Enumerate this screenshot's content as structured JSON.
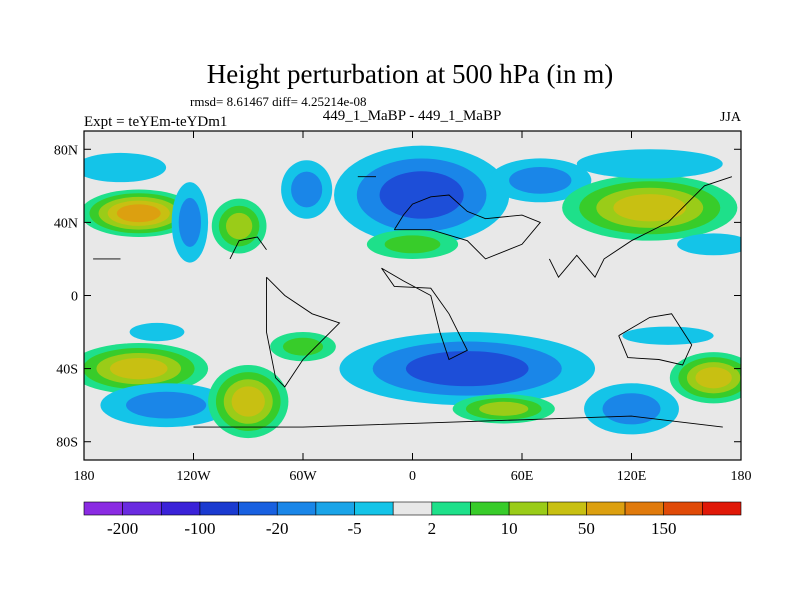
{
  "chart_data": {
    "type": "heatmap",
    "title": "Height perturbation at 500 hPa (in m)",
    "stats": "rmsd= 8.61467 diff= 4.25214e-08",
    "left_label": "Expt = teYEm-teYDm1",
    "center_label": "449_1_MaBP - 449_1_MaBP",
    "right_label": "JJA",
    "x_ticks": [
      {
        "lon": -180,
        "label": "180"
      },
      {
        "lon": -120,
        "label": "120W"
      },
      {
        "lon": -60,
        "label": "60W"
      },
      {
        "lon": 0,
        "label": "0"
      },
      {
        "lon": 60,
        "label": "60E"
      },
      {
        "lon": 120,
        "label": "120E"
      },
      {
        "lon": 180,
        "label": "180"
      }
    ],
    "y_ticks": [
      {
        "lat": 80,
        "label": "80N"
      },
      {
        "lat": 40,
        "label": "40N"
      },
      {
        "lat": 0,
        "label": "0"
      },
      {
        "lat": -40,
        "label": "40S"
      },
      {
        "lat": -80,
        "label": "80S"
      }
    ],
    "xlim": [
      -180,
      180
    ],
    "ylim": [
      -90,
      90
    ],
    "colorbar": {
      "colors": [
        "#8a2be2",
        "#6a2be0",
        "#3a22d8",
        "#1a3ad0",
        "#1860e0",
        "#1a86e8",
        "#1aa4e8",
        "#14c4e8",
        "#e8e8e8",
        "#1ee08a",
        "#38cc2a",
        "#9acc18",
        "#c8c012",
        "#dca010",
        "#e07a0c",
        "#e04a08",
        "#e01808"
      ],
      "labels": [
        {
          "index": 1,
          "label": "-200"
        },
        {
          "index": 3,
          "label": "-100"
        },
        {
          "index": 5,
          "label": "-20"
        },
        {
          "index": 7,
          "label": "-5"
        },
        {
          "index": 9,
          "label": "2"
        },
        {
          "index": 11,
          "label": "10"
        },
        {
          "index": 13,
          "label": "50"
        },
        {
          "index": 15,
          "label": "150"
        }
      ]
    },
    "level_colors": {
      "neg_strong": "#1d4ed8",
      "neg_mid": "#1a86e8",
      "neg_weak": "#14c4e8",
      "neutral": "#e8e8e8",
      "pos_weak": "#1ee08a",
      "pos_mid": "#38cc2a",
      "pos_high": "#9acc18",
      "pos_strong": "#c8c012",
      "pos_peak": "#dca010"
    },
    "fields": [
      {
        "lon": -150,
        "lat": 45,
        "rlon": 32,
        "rlat": 13,
        "levels": [
          "pos_weak",
          "pos_mid",
          "pos_high",
          "pos_strong",
          "pos_peak"
        ]
      },
      {
        "lon": -95,
        "lat": 38,
        "rlon": 15,
        "rlat": 15,
        "levels": [
          "pos_weak",
          "pos_mid",
          "pos_high"
        ]
      },
      {
        "lon": -122,
        "lat": 40,
        "rlon": 10,
        "rlat": 22,
        "levels": [
          "neg_weak",
          "neg_mid"
        ]
      },
      {
        "lon": -160,
        "lat": 70,
        "rlon": 25,
        "rlat": 8,
        "levels": [
          "neg_weak"
        ]
      },
      {
        "lon": -58,
        "lat": 58,
        "rlon": 14,
        "rlat": 16,
        "levels": [
          "neg_weak",
          "neg_mid"
        ]
      },
      {
        "lon": 5,
        "lat": 55,
        "rlon": 48,
        "rlat": 27,
        "levels": [
          "neg_weak",
          "neg_mid",
          "neg_strong"
        ]
      },
      {
        "lon": 70,
        "lat": 63,
        "rlon": 28,
        "rlat": 12,
        "levels": [
          "neg_weak",
          "neg_mid"
        ]
      },
      {
        "lon": 0,
        "lat": 28,
        "rlon": 25,
        "rlat": 8,
        "levels": [
          "pos_weak",
          "pos_mid"
        ]
      },
      {
        "lon": 130,
        "lat": 48,
        "rlon": 48,
        "rlat": 18,
        "levels": [
          "pos_weak",
          "pos_mid",
          "pos_high",
          "pos_strong"
        ]
      },
      {
        "lon": 130,
        "lat": 72,
        "rlon": 40,
        "rlat": 8,
        "levels": [
          "neg_weak"
        ]
      },
      {
        "lon": 165,
        "lat": 28,
        "rlon": 20,
        "rlat": 6,
        "levels": [
          "neg_weak"
        ]
      },
      {
        "lon": -150,
        "lat": -40,
        "rlon": 38,
        "rlat": 14,
        "levels": [
          "pos_weak",
          "pos_mid",
          "pos_high",
          "pos_strong"
        ]
      },
      {
        "lon": -135,
        "lat": -60,
        "rlon": 36,
        "rlat": 12,
        "levels": [
          "neg_weak",
          "neg_mid"
        ]
      },
      {
        "lon": -90,
        "lat": -58,
        "rlon": 22,
        "rlat": 20,
        "levels": [
          "pos_weak",
          "pos_mid",
          "pos_high",
          "pos_strong"
        ]
      },
      {
        "lon": 30,
        "lat": -40,
        "rlon": 70,
        "rlat": 20,
        "levels": [
          "neg_weak",
          "neg_mid",
          "neg_strong"
        ]
      },
      {
        "lon": 50,
        "lat": -62,
        "rlon": 28,
        "rlat": 8,
        "levels": [
          "pos_weak",
          "pos_mid",
          "pos_high"
        ]
      },
      {
        "lon": 120,
        "lat": -62,
        "rlon": 26,
        "rlat": 14,
        "levels": [
          "neg_weak",
          "neg_mid"
        ]
      },
      {
        "lon": 165,
        "lat": -45,
        "rlon": 24,
        "rlat": 14,
        "levels": [
          "pos_weak",
          "pos_mid",
          "pos_high",
          "pos_strong"
        ]
      },
      {
        "lon": -60,
        "lat": -28,
        "rlon": 18,
        "rlat": 8,
        "levels": [
          "pos_weak",
          "pos_mid"
        ]
      },
      {
        "lon": -140,
        "lat": -20,
        "rlon": 15,
        "rlat": 5,
        "levels": [
          "neg_weak"
        ]
      },
      {
        "lon": 140,
        "lat": -22,
        "rlon": 25,
        "rlat": 5,
        "levels": [
          "neg_weak"
        ]
      }
    ],
    "coastlines": [
      [
        [
          -10,
          36
        ],
        [
          -5,
          44
        ],
        [
          0,
          50
        ],
        [
          10,
          54
        ],
        [
          20,
          55
        ],
        [
          30,
          46
        ],
        [
          40,
          42
        ],
        [
          60,
          44
        ],
        [
          70,
          40
        ],
        [
          60,
          28
        ],
        [
          40,
          20
        ],
        [
          30,
          30
        ],
        [
          10,
          36
        ],
        [
          -10,
          36
        ]
      ],
      [
        [
          -17,
          15
        ],
        [
          -10,
          5
        ],
        [
          10,
          4
        ],
        [
          20,
          -10
        ],
        [
          30,
          -30
        ],
        [
          20,
          -35
        ],
        [
          15,
          -20
        ],
        [
          10,
          0
        ],
        [
          -5,
          8
        ],
        [
          -17,
          15
        ]
      ],
      [
        [
          -80,
          10
        ],
        [
          -70,
          0
        ],
        [
          -55,
          -10
        ],
        [
          -40,
          -15
        ],
        [
          -60,
          -35
        ],
        [
          -70,
          -50
        ],
        [
          -75,
          -45
        ],
        [
          -80,
          -20
        ],
        [
          -80,
          10
        ]
      ],
      [
        [
          -100,
          20
        ],
        [
          -95,
          30
        ],
        [
          -85,
          32
        ],
        [
          -80,
          25
        ]
      ],
      [
        [
          75,
          20
        ],
        [
          80,
          10
        ],
        [
          90,
          22
        ],
        [
          100,
          10
        ],
        [
          105,
          20
        ],
        [
          120,
          30
        ],
        [
          130,
          35
        ],
        [
          140,
          40
        ],
        [
          160,
          60
        ],
        [
          175,
          65
        ]
      ],
      [
        [
          113,
          -22
        ],
        [
          130,
          -12
        ],
        [
          142,
          -10
        ],
        [
          153,
          -27
        ],
        [
          148,
          -38
        ],
        [
          135,
          -35
        ],
        [
          118,
          -34
        ],
        [
          113,
          -22
        ]
      ],
      [
        [
          -120,
          -72
        ],
        [
          -60,
          -72
        ],
        [
          0,
          -70
        ],
        [
          60,
          -68
        ],
        [
          120,
          -66
        ],
        [
          170,
          -72
        ]
      ],
      [
        [
          -175,
          20
        ],
        [
          -160,
          20
        ]
      ],
      [
        [
          -30,
          65
        ],
        [
          -20,
          65
        ]
      ]
    ]
  }
}
